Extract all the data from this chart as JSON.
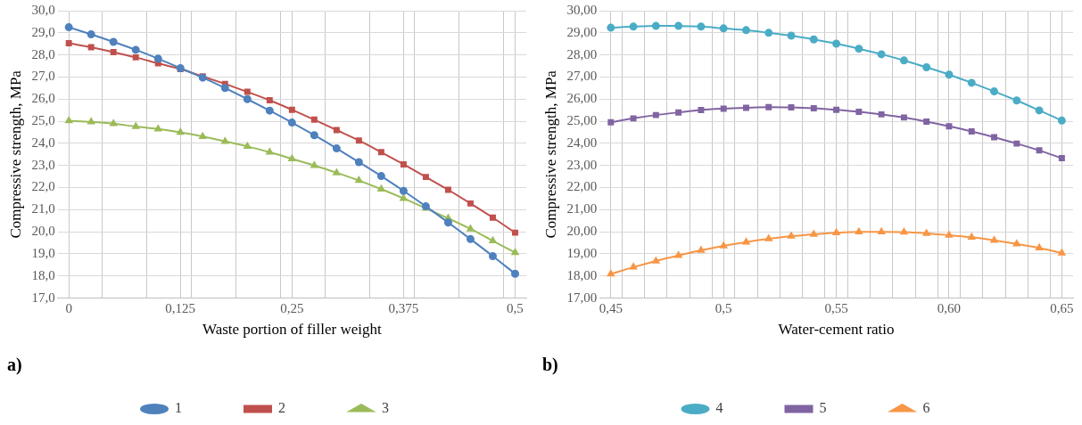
{
  "chart_data": [
    {
      "type": "line",
      "xlabel": "Waste portion of filler weight",
      "ylabel": "Compressive strength, MPa",
      "annotations": [
        "a)"
      ],
      "x": [
        0,
        0.025,
        0.05,
        0.075,
        0.1,
        0.125,
        0.15,
        0.175,
        0.2,
        0.225,
        0.25,
        0.275,
        0.3,
        0.325,
        0.35,
        0.375,
        0.4,
        0.425,
        0.45,
        0.475,
        0.5
      ],
      "xlim": [
        -0.0125,
        0.5125
      ],
      "xticks": [
        {
          "value": 0,
          "label": "0"
        },
        {
          "value": 0.0375,
          "label": null
        },
        {
          "value": 0.0875,
          "label": null
        },
        {
          "value": 0.125,
          "label": "0,125"
        },
        {
          "value": 0.1375,
          "label": null
        },
        {
          "value": 0.1875,
          "label": null
        },
        {
          "value": 0.2375,
          "label": null
        },
        {
          "value": 0.25,
          "label": "0,25"
        },
        {
          "value": 0.2875,
          "label": null
        },
        {
          "value": 0.3375,
          "label": null
        },
        {
          "value": 0.375,
          "label": "0,375"
        },
        {
          "value": 0.3875,
          "label": null
        },
        {
          "value": 0.4375,
          "label": null
        },
        {
          "value": 0.4875,
          "label": null
        },
        {
          "value": 0.5,
          "label": "0,5"
        }
      ],
      "ylim": [
        17,
        30
      ],
      "yticks": [
        {
          "value": 17,
          "label": "17,0"
        },
        {
          "value": 18,
          "label": "18,0"
        },
        {
          "value": 19,
          "label": "19,0"
        },
        {
          "value": 20,
          "label": "20,0"
        },
        {
          "value": 21,
          "label": "21,0"
        },
        {
          "value": 22,
          "label": "22,0"
        },
        {
          "value": 23,
          "label": "23,0"
        },
        {
          "value": 24,
          "label": "24,0"
        },
        {
          "value": 25,
          "label": "25,0"
        },
        {
          "value": 26,
          "label": "26,0"
        },
        {
          "value": 27,
          "label": "27,0"
        },
        {
          "value": 28,
          "label": "28,0"
        },
        {
          "value": 29,
          "label": "29,0"
        },
        {
          "value": 30,
          "label": "30,0"
        }
      ],
      "grid": true,
      "legend": "bottom",
      "line_style": "solid",
      "series": [
        {
          "name": "1",
          "color": "#4f81bd",
          "marker": "circle",
          "values": [
            29.25,
            28.93,
            28.59,
            28.23,
            27.83,
            27.4,
            26.97,
            26.5,
            26.0,
            25.48,
            24.94,
            24.37,
            23.77,
            23.15,
            22.52,
            21.85,
            21.15,
            20.42,
            19.67,
            18.9,
            18.1
          ]
        },
        {
          "name": "2",
          "color": "#c0504d",
          "marker": "square",
          "values": [
            28.53,
            28.35,
            28.13,
            27.89,
            27.62,
            27.36,
            27.03,
            26.69,
            26.33,
            25.95,
            25.52,
            25.07,
            24.6,
            24.13,
            23.6,
            23.05,
            22.48,
            21.9,
            21.28,
            20.64,
            19.96
          ]
        },
        {
          "name": "3",
          "color": "#9bbb59",
          "marker": "triangle",
          "values": [
            25.02,
            24.97,
            24.89,
            24.76,
            24.65,
            24.5,
            24.31,
            24.09,
            23.86,
            23.6,
            23.3,
            23.0,
            22.67,
            22.32,
            21.93,
            21.51,
            21.06,
            20.61,
            20.13,
            19.59,
            19.06
          ]
        }
      ]
    },
    {
      "type": "line",
      "xlabel": "Water-cement ratio",
      "ylabel": "Compressive strength, MPa",
      "annotations": [
        "b)"
      ],
      "x": [
        0.45,
        0.46,
        0.47,
        0.48,
        0.49,
        0.5,
        0.51,
        0.52,
        0.53,
        0.54,
        0.55,
        0.56,
        0.57,
        0.58,
        0.59,
        0.6,
        0.61,
        0.62,
        0.63,
        0.64,
        0.65
      ],
      "xlim": [
        0.445,
        0.655
      ],
      "xticks": [
        {
          "value": 0.45,
          "label": "0,45"
        },
        {
          "value": 0.455,
          "label": null
        },
        {
          "value": 0.465,
          "label": null
        },
        {
          "value": 0.475,
          "label": null
        },
        {
          "value": 0.485,
          "label": null
        },
        {
          "value": 0.495,
          "label": null
        },
        {
          "value": 0.5,
          "label": "0,5"
        },
        {
          "value": 0.505,
          "label": null
        },
        {
          "value": 0.515,
          "label": null
        },
        {
          "value": 0.525,
          "label": null
        },
        {
          "value": 0.535,
          "label": null
        },
        {
          "value": 0.545,
          "label": null
        },
        {
          "value": 0.55,
          "label": "0,55"
        },
        {
          "value": 0.555,
          "label": null
        },
        {
          "value": 0.565,
          "label": null
        },
        {
          "value": 0.575,
          "label": null
        },
        {
          "value": 0.585,
          "label": null
        },
        {
          "value": 0.595,
          "label": null
        },
        {
          "value": 0.6,
          "label": "0,60"
        },
        {
          "value": 0.605,
          "label": null
        },
        {
          "value": 0.615,
          "label": null
        },
        {
          "value": 0.625,
          "label": null
        },
        {
          "value": 0.635,
          "label": null
        },
        {
          "value": 0.645,
          "label": null
        },
        {
          "value": 0.65,
          "label": "0,65"
        }
      ],
      "ylim": [
        17,
        30
      ],
      "yticks": [
        {
          "value": 17,
          "label": "17,00"
        },
        {
          "value": 18,
          "label": "18,00"
        },
        {
          "value": 19,
          "label": "19,00"
        },
        {
          "value": 20,
          "label": "20,00"
        },
        {
          "value": 21,
          "label": "21,00"
        },
        {
          "value": 22,
          "label": "22,00"
        },
        {
          "value": 23,
          "label": "23,00"
        },
        {
          "value": 24,
          "label": "24,00"
        },
        {
          "value": 25,
          "label": "25,00"
        },
        {
          "value": 26,
          "label": "26,00"
        },
        {
          "value": 27,
          "label": "27,00"
        },
        {
          "value": 28,
          "label": "28,00"
        },
        {
          "value": 29,
          "label": "29,00"
        },
        {
          "value": 30,
          "label": "30,00"
        }
      ],
      "grid": true,
      "legend": "bottom",
      "line_style": "solid",
      "series": [
        {
          "name": "4",
          "color": "#4bacc6",
          "marker": "circle",
          "values": [
            29.23,
            29.28,
            29.31,
            29.31,
            29.28,
            29.2,
            29.12,
            29.0,
            28.87,
            28.7,
            28.51,
            28.28,
            28.03,
            27.75,
            27.44,
            27.11,
            26.74,
            26.35,
            25.94,
            25.49,
            25.03
          ]
        },
        {
          "name": "5",
          "color": "#8064a2",
          "marker": "square",
          "values": [
            24.95,
            25.13,
            25.28,
            25.4,
            25.51,
            25.57,
            25.61,
            25.64,
            25.63,
            25.59,
            25.52,
            25.43,
            25.31,
            25.17,
            24.98,
            24.77,
            24.54,
            24.28,
            23.99,
            23.68,
            23.33
          ]
        },
        {
          "name": "6",
          "color": "#f79646",
          "marker": "triangle",
          "values": [
            18.09,
            18.4,
            18.68,
            18.93,
            19.16,
            19.36,
            19.53,
            19.68,
            19.8,
            19.89,
            19.96,
            20.0,
            20.0,
            19.99,
            19.93,
            19.85,
            19.75,
            19.61,
            19.45,
            19.27,
            19.04
          ]
        }
      ]
    }
  ]
}
